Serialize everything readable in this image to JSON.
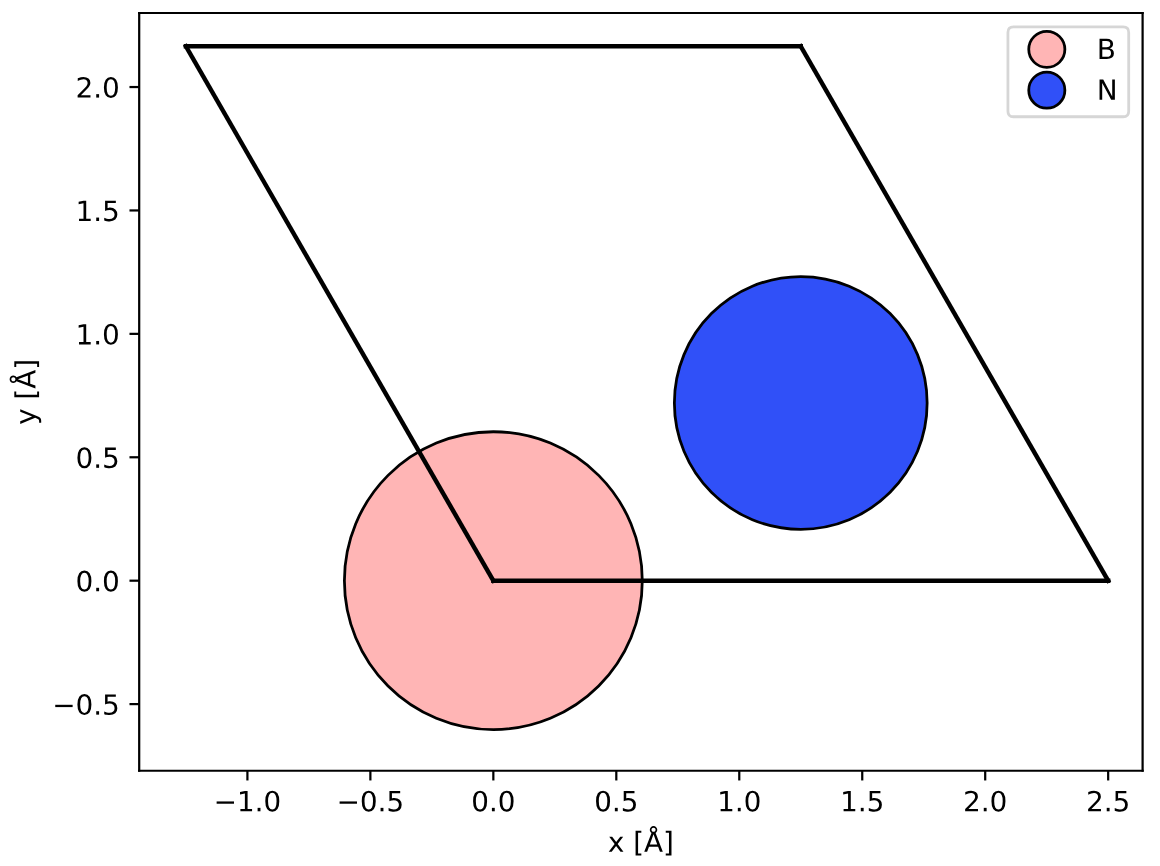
{
  "chart_data": {
    "type": "bubble",
    "xlabel": "x [Å]",
    "ylabel": "y [Å]",
    "xlim": [
      -1.44,
      2.64
    ],
    "ylim": [
      -0.77,
      2.3
    ],
    "xticks": [
      {
        "value": -1.0,
        "label": "−1.0"
      },
      {
        "value": -0.5,
        "label": "−0.5"
      },
      {
        "value": 0,
        "label": "0.0"
      },
      0.5,
      {
        "value": 1,
        "label": "1.0"
      },
      1.5,
      {
        "value": 2,
        "label": "2.0"
      },
      2.5
    ],
    "yticks": [
      {
        "value": -0.5,
        "label": "−0.5"
      },
      {
        "value": 0,
        "label": "0.0"
      },
      0.5,
      {
        "value": 1,
        "label": "1.0"
      },
      1.5,
      {
        "value": 2,
        "label": "2.0"
      }
    ],
    "legend": "top right",
    "grid": false,
    "marker": "circle",
    "series": [
      {
        "type": "line",
        "color": "#000000",
        "x": [
          0,
          2.5
        ],
        "values": [
          0,
          0
        ],
        "line_style": "solid",
        "marker": "none"
      },
      {
        "type": "line",
        "color": "#000000",
        "x": [
          1.25,
          2.5
        ],
        "values": [
          2.165,
          0
        ],
        "line_style": "solid",
        "marker": "none"
      },
      {
        "type": "line",
        "color": "#000000",
        "x": [
          -1.25,
          1.25
        ],
        "values": [
          2.165,
          2.165
        ],
        "line_style": "solid",
        "marker": "none"
      },
      {
        "type": "line",
        "color": "#000000",
        "x": [
          -1.25,
          0
        ],
        "values": [
          2.165,
          0
        ],
        "line_style": "solid",
        "marker": "none"
      },
      {
        "name": "B",
        "color": "#ffb5b5",
        "x": [
          0
        ],
        "values": [
          0
        ],
        "sizes": [
          1
        ]
      },
      {
        "name": "N",
        "color": "#3050f8",
        "x": [
          1.25
        ],
        "values": [
          0.72
        ],
        "sizes": [
          0.72
        ]
      }
    ]
  }
}
